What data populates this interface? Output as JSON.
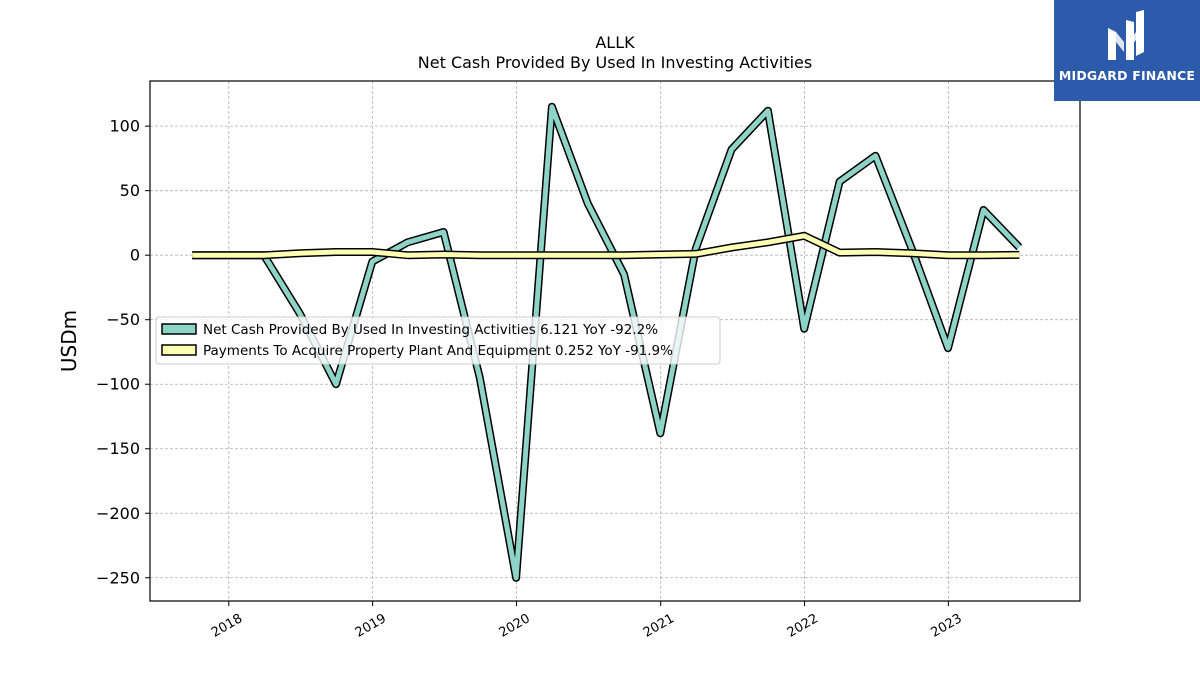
{
  "brand": {
    "name": "MIDGARD FINANCE",
    "logo_icon": "midgard-m-logo-icon",
    "color": "#2d5bab"
  },
  "chart_data": {
    "type": "line",
    "title": "ALLK",
    "subtitle": "Net Cash Provided By Used In Investing Activities",
    "ylabel": "USDm",
    "xlabel": "",
    "ylim": [
      -268,
      135
    ],
    "xlim": [
      "2017-06-15",
      "2023-12-01"
    ],
    "yticks": [
      100,
      50,
      0,
      -50,
      -100,
      -150,
      -200,
      -250
    ],
    "ytick_labels": [
      "100",
      "50",
      "0",
      "−50",
      "−100",
      "−150",
      "−200",
      "−250"
    ],
    "xticks": [
      "2018-01-01",
      "2019-01-01",
      "2020-01-01",
      "2021-01-01",
      "2022-01-01",
      "2023-01-01"
    ],
    "xtick_labels": [
      "2018",
      "2019",
      "2020",
      "2021",
      "2022",
      "2023"
    ],
    "grid": true,
    "legend_position": "center-left",
    "x": [
      "2017-09-30",
      "2017-12-31",
      "2018-03-31",
      "2018-06-30",
      "2018-09-30",
      "2018-12-31",
      "2019-03-31",
      "2019-06-30",
      "2019-09-30",
      "2019-12-31",
      "2020-03-31",
      "2020-06-30",
      "2020-09-30",
      "2020-12-31",
      "2021-03-31",
      "2021-06-30",
      "2021-09-30",
      "2021-12-31",
      "2022-03-31",
      "2022-06-30",
      "2022-09-30",
      "2022-12-31",
      "2023-03-31",
      "2023-06-30"
    ],
    "series": [
      {
        "name": "Net Cash Provided By Used In Investing Activities",
        "legend_label": "Net Cash Provided By Used In Investing Activities  6.121 YoY -92.2%",
        "color": "#8dd3c7",
        "values": [
          0,
          0,
          0,
          -45,
          -100,
          -5,
          10,
          18,
          -95,
          -250,
          115,
          40,
          -15,
          -138,
          5,
          82,
          112,
          -57,
          57,
          77,
          5,
          -72,
          35,
          6.121
        ]
      },
      {
        "name": "Payments To Acquire Property Plant And Equipment",
        "legend_label": "Payments To Acquire Property Plant And Equipment  0.252 YoY -91.9%",
        "color": "#ffffb3",
        "values": [
          0,
          0,
          0,
          1.5,
          2.5,
          2.5,
          0,
          0.5,
          0,
          0,
          0,
          0,
          0,
          0.5,
          1,
          6,
          10,
          15,
          2,
          2.5,
          1.5,
          0,
          0,
          0.252
        ]
      }
    ]
  }
}
